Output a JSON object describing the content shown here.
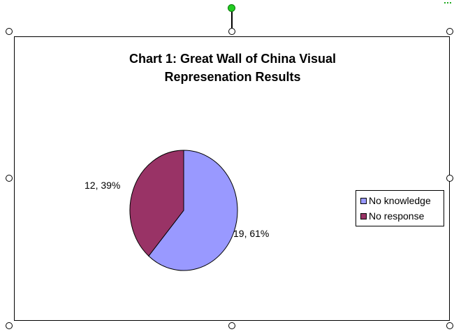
{
  "chart_data": {
    "type": "pie",
    "title_lines": [
      "Chart 1:  Great Wall of China Visual",
      "Represenation Results"
    ],
    "categories": [
      "No knowledge",
      "No response"
    ],
    "values": [
      19,
      12
    ],
    "percent_labels": [
      "61%",
      "39%"
    ],
    "data_labels": [
      "19, 61%",
      "12, 39%"
    ],
    "colors": [
      "#9999ff",
      "#993366"
    ],
    "legend_position": "right"
  }
}
